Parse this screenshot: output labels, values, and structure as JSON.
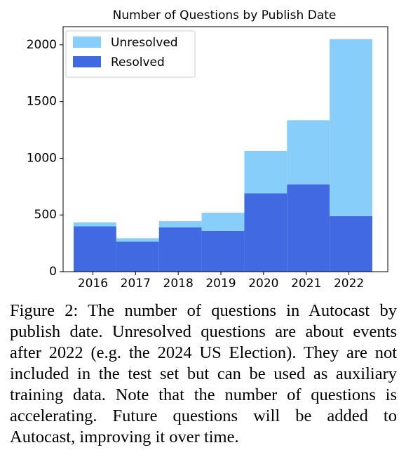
{
  "chart_data": {
    "type": "bar",
    "title": "Number of Questions by Publish Date",
    "categories": [
      "2016",
      "2017",
      "2018",
      "2019",
      "2020",
      "2021",
      "2022"
    ],
    "series": [
      {
        "name": "Unresolved",
        "color": "#87cefa",
        "values": [
          35,
          30,
          55,
          160,
          375,
          565,
          1560
        ]
      },
      {
        "name": "Resolved",
        "color": "#4169e1",
        "values": [
          400,
          265,
          390,
          360,
          690,
          770,
          490
        ]
      }
    ],
    "stacked": true,
    "ylim": [
      0,
      2160
    ],
    "yticks": [
      0,
      500,
      1000,
      1500,
      2000
    ],
    "legend": "upper left"
  },
  "caption": "Figure 2: The number of questions in Autocast by publish date. Unresolved questions are about events after 2022 (e.g. the 2024 US Election). They are not included in the test set but can be used as auxiliary training data. Note that the number of questions is accelerating. Future questions will be added to Autocast, improving it over time."
}
